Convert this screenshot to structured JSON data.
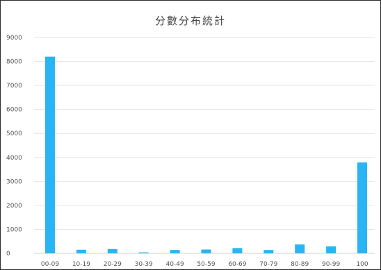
{
  "chart_data": {
    "type": "bar",
    "title": "分數分布統計",
    "xlabel": "",
    "ylabel": "",
    "categories": [
      "00-09",
      "10-19",
      "20-29",
      "30-39",
      "40-49",
      "50-59",
      "60-69",
      "70-79",
      "80-89",
      "90-99",
      "100"
    ],
    "values": [
      8200,
      150,
      180,
      40,
      140,
      160,
      220,
      140,
      370,
      290,
      3790
    ],
    "ylim": [
      0,
      9000
    ],
    "yticks": [
      0,
      1000,
      2000,
      3000,
      4000,
      5000,
      6000,
      7000,
      8000,
      9000
    ],
    "grid": true,
    "legend": "none",
    "bar_color": "#2ab4f4"
  }
}
